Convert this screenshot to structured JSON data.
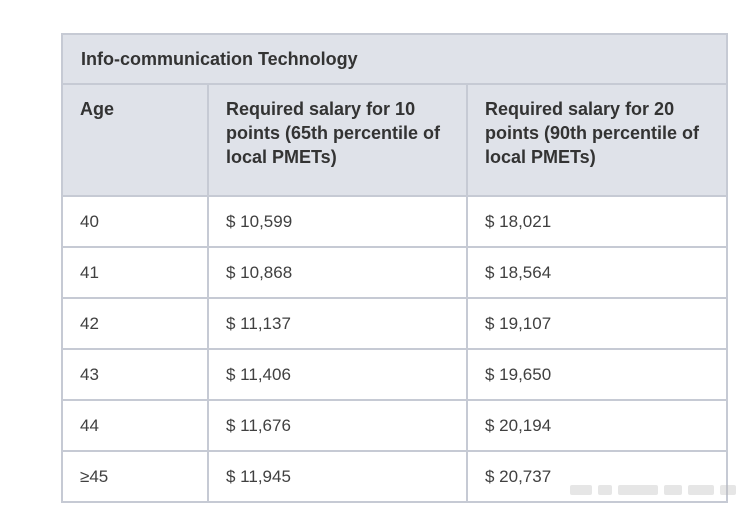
{
  "table": {
    "title": "Info-communication Technology",
    "headers": [
      "Age",
      "Required salary for 10 points (65th percentile of local PMETs)",
      "Required salary for 20 points (90th percentile of local PMETs)"
    ],
    "rows": [
      [
        "40",
        "$ 10,599",
        "$ 18,021"
      ],
      [
        "41",
        "$ 10,868",
        "$ 18,564"
      ],
      [
        "42",
        "$ 11,137",
        "$ 19,107"
      ],
      [
        "43",
        "$ 11,406",
        "$ 19,650"
      ],
      [
        "44",
        "$ 11,676",
        "$ 20,194"
      ],
      [
        "≥45",
        "$ 11,945",
        "$ 20,737"
      ]
    ]
  },
  "colors": {
    "header_bg": "#dfe2e9",
    "border": "#c6cad4",
    "text": "#333333"
  }
}
